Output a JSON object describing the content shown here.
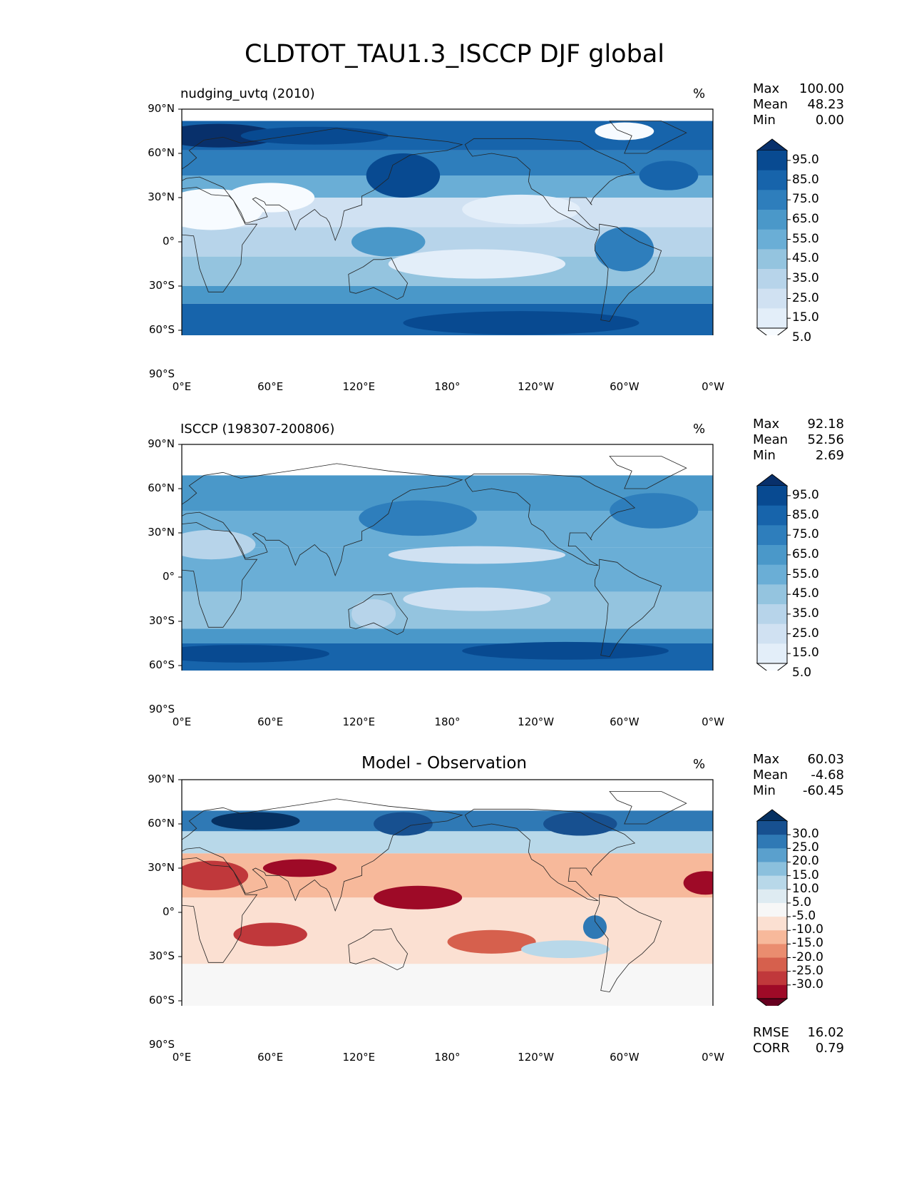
{
  "title": "CLDTOT_TAU1.3_ISCCP DJF global",
  "lat_ticks": [
    "90°N",
    "60°N",
    "30°N",
    "0°",
    "30°S",
    "60°S",
    "90°S"
  ],
  "lon_ticks": [
    "0°E",
    "60°E",
    "120°E",
    "180°",
    "120°W",
    "60°W",
    "0°W"
  ],
  "panels": [
    {
      "id": "model",
      "title_left": "nudging_uvtq (2010)",
      "title_center": "",
      "units": "%",
      "stats": [
        {
          "label": "Max",
          "value": "100.00"
        },
        {
          "label": "Mean",
          "value": "48.23"
        },
        {
          "label": "Min",
          "value": "0.00"
        }
      ],
      "colorbar": {
        "colors": [
          "#f7fbff",
          "#e3eef9",
          "#d0e1f2",
          "#b7d4ea",
          "#94c4df",
          "#6aaed6",
          "#4a98c9",
          "#2e7ebc",
          "#1764ab",
          "#084a91",
          "#08306b"
        ],
        "labels": [
          "95.0",
          "85.0",
          "75.0",
          "65.0",
          "55.0",
          "45.0",
          "35.0",
          "25.0",
          "15.0",
          "5.0"
        ]
      }
    },
    {
      "id": "obs",
      "title_left": "ISCCP (198307-200806)",
      "title_center": "",
      "units": "%",
      "stats": [
        {
          "label": "Max",
          "value": "92.18"
        },
        {
          "label": "Mean",
          "value": "52.56"
        },
        {
          "label": "Min",
          "value": "2.69"
        }
      ],
      "colorbar": {
        "colors": [
          "#f7fbff",
          "#e3eef9",
          "#d0e1f2",
          "#b7d4ea",
          "#94c4df",
          "#6aaed6",
          "#4a98c9",
          "#2e7ebc",
          "#1764ab",
          "#084a91",
          "#08306b"
        ],
        "labels": [
          "95.0",
          "85.0",
          "75.0",
          "65.0",
          "55.0",
          "45.0",
          "35.0",
          "25.0",
          "15.0",
          "5.0"
        ]
      }
    },
    {
      "id": "diff",
      "title_left": "",
      "title_center": "Model - Observation",
      "units": "%",
      "stats": [
        {
          "label": "Max",
          "value": "60.03"
        },
        {
          "label": "Mean",
          "value": "-4.68"
        },
        {
          "label": "Min",
          "value": "-60.45"
        }
      ],
      "colorbar": {
        "colors": [
          "#67001f",
          "#9e0a27",
          "#c0383b",
          "#d6604d",
          "#ea8d6f",
          "#f7b99b",
          "#fbe0d2",
          "#f7f7f7",
          "#deebf2",
          "#b8d8e9",
          "#8bc0dd",
          "#5aa0cd",
          "#2f79b5",
          "#175090",
          "#053061"
        ],
        "labels": [
          "30.0",
          "25.0",
          "20.0",
          "15.0",
          "10.0",
          "5.0",
          "-5.0",
          "-10.0",
          "-15.0",
          "-20.0",
          "-25.0",
          "-30.0"
        ]
      },
      "metrics": [
        {
          "label": "RMSE",
          "value": "16.02"
        },
        {
          "label": "CORR",
          "value": "0.79"
        }
      ]
    }
  ]
}
